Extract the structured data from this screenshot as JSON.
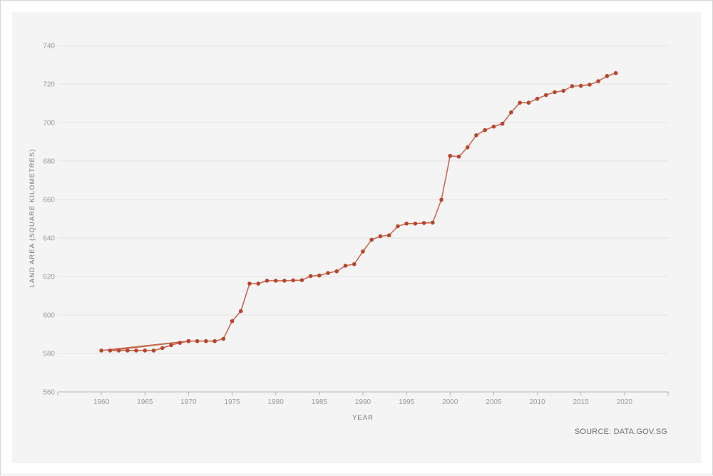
{
  "chart_data": {
    "type": "line",
    "xlabel": "YEAR",
    "ylabel": "LAND AREA (SQUARE KILOMETRES)",
    "source": "SOURCE: DATA.GOV.SG",
    "xlim": [
      1955,
      2025
    ],
    "ylim": [
      560,
      740
    ],
    "x_ticks": [
      1960,
      1965,
      1970,
      1975,
      1980,
      1985,
      1990,
      1995,
      2000,
      2005,
      2010,
      2015,
      2020
    ],
    "y_ticks": [
      560,
      580,
      600,
      620,
      640,
      660,
      680,
      700,
      720,
      740
    ],
    "grid": "horizontal",
    "series": [
      {
        "color": "#b8442a",
        "line_color": "#c96a4e",
        "x": [
          1960,
          1970,
          1961,
          1962,
          1963,
          1964,
          1965,
          1966,
          1967,
          1968,
          1969,
          1970,
          1971,
          1972,
          1973,
          1974,
          1975,
          1976,
          1977,
          1978,
          1979,
          1980,
          1981,
          1982,
          1983,
          1984,
          1985,
          1986,
          1987,
          1988,
          1989,
          1990,
          1991,
          1992,
          1993,
          1994,
          1995,
          1996,
          1997,
          1998,
          1999,
          2000,
          2001,
          2002,
          2003,
          2004,
          2005,
          2006,
          2007,
          2008,
          2009,
          2010,
          2011,
          2012,
          2013,
          2014,
          2015,
          2016,
          2017,
          2018,
          2019
        ],
        "y": [
          581.5,
          586.4,
          581.5,
          581.5,
          581.5,
          581.5,
          581.5,
          581.5,
          582.8,
          584.3,
          585.5,
          586.4,
          586.4,
          586.4,
          586.4,
          587.6,
          596.8,
          602.0,
          616.3,
          616.3,
          617.8,
          617.8,
          617.8,
          618.0,
          618.1,
          620.2,
          620.5,
          621.8,
          622.7,
          625.6,
          626.4,
          633.0,
          639.1,
          640.9,
          641.4,
          646.1,
          647.5,
          647.5,
          647.8,
          648.0,
          659.9,
          682.7,
          682.3,
          687.1,
          693.4,
          696.1,
          697.9,
          699.4,
          705.3,
          710.3,
          710.3,
          712.4,
          714.3,
          715.8,
          716.5,
          718.9,
          719.1,
          719.7,
          721.5,
          724.2,
          725.7
        ]
      }
    ]
  }
}
